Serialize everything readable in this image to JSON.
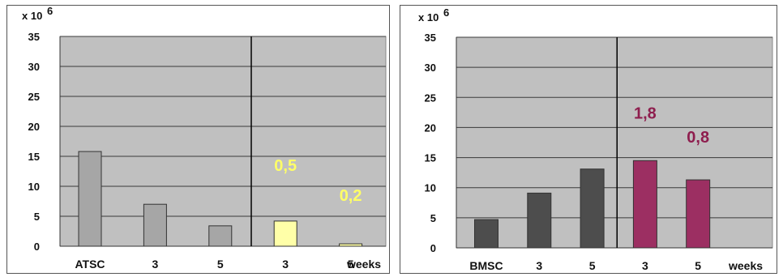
{
  "chart_data": [
    {
      "type": "bar",
      "unit_label": "x 10",
      "unit_exponent": "6",
      "categories": [
        "ATSC",
        "3",
        "5",
        "3",
        "5"
      ],
      "axis_suffix": "weeks",
      "values": [
        15.8,
        7.0,
        3.4,
        4.2,
        0.4
      ],
      "bar_colors": [
        "#a6a6a6",
        "#a6a6a6",
        "#a6a6a6",
        "#ffffa8",
        "#ffffa8"
      ],
      "divider_after_index": 2,
      "ylim": [
        0,
        35
      ],
      "yticks": [
        0,
        5,
        10,
        15,
        20,
        25,
        30,
        35
      ],
      "grid": true,
      "plot_bg": "#c0c0c0",
      "annotations": [
        {
          "text": "0,5",
          "at_index": 3,
          "y": 12.6,
          "color": "#ffff66"
        },
        {
          "text": "0,2",
          "at_index": 4,
          "y": 7.6,
          "color": "#ffff66"
        }
      ]
    },
    {
      "type": "bar",
      "unit_label": "x 10",
      "unit_exponent": "6",
      "categories": [
        "BMSC",
        "3",
        "5",
        "3",
        "5"
      ],
      "axis_suffix": "weeks",
      "values": [
        4.7,
        9.1,
        13.1,
        14.5,
        11.3
      ],
      "bar_colors": [
        "#4d4d4d",
        "#4d4d4d",
        "#4d4d4d",
        "#9c2f62",
        "#9c2f62"
      ],
      "divider_after_index": 2,
      "ylim": [
        0,
        35
      ],
      "yticks": [
        0,
        5,
        10,
        15,
        20,
        25,
        30,
        35
      ],
      "grid": true,
      "plot_bg": "#c0c0c0",
      "annotations": [
        {
          "text": "1,8",
          "at_index": 3,
          "y": 21.5,
          "color": "#8e1e4e"
        },
        {
          "text": "0,8",
          "at_index": 4,
          "y": 17.5,
          "color": "#8e1e4e"
        }
      ]
    }
  ]
}
